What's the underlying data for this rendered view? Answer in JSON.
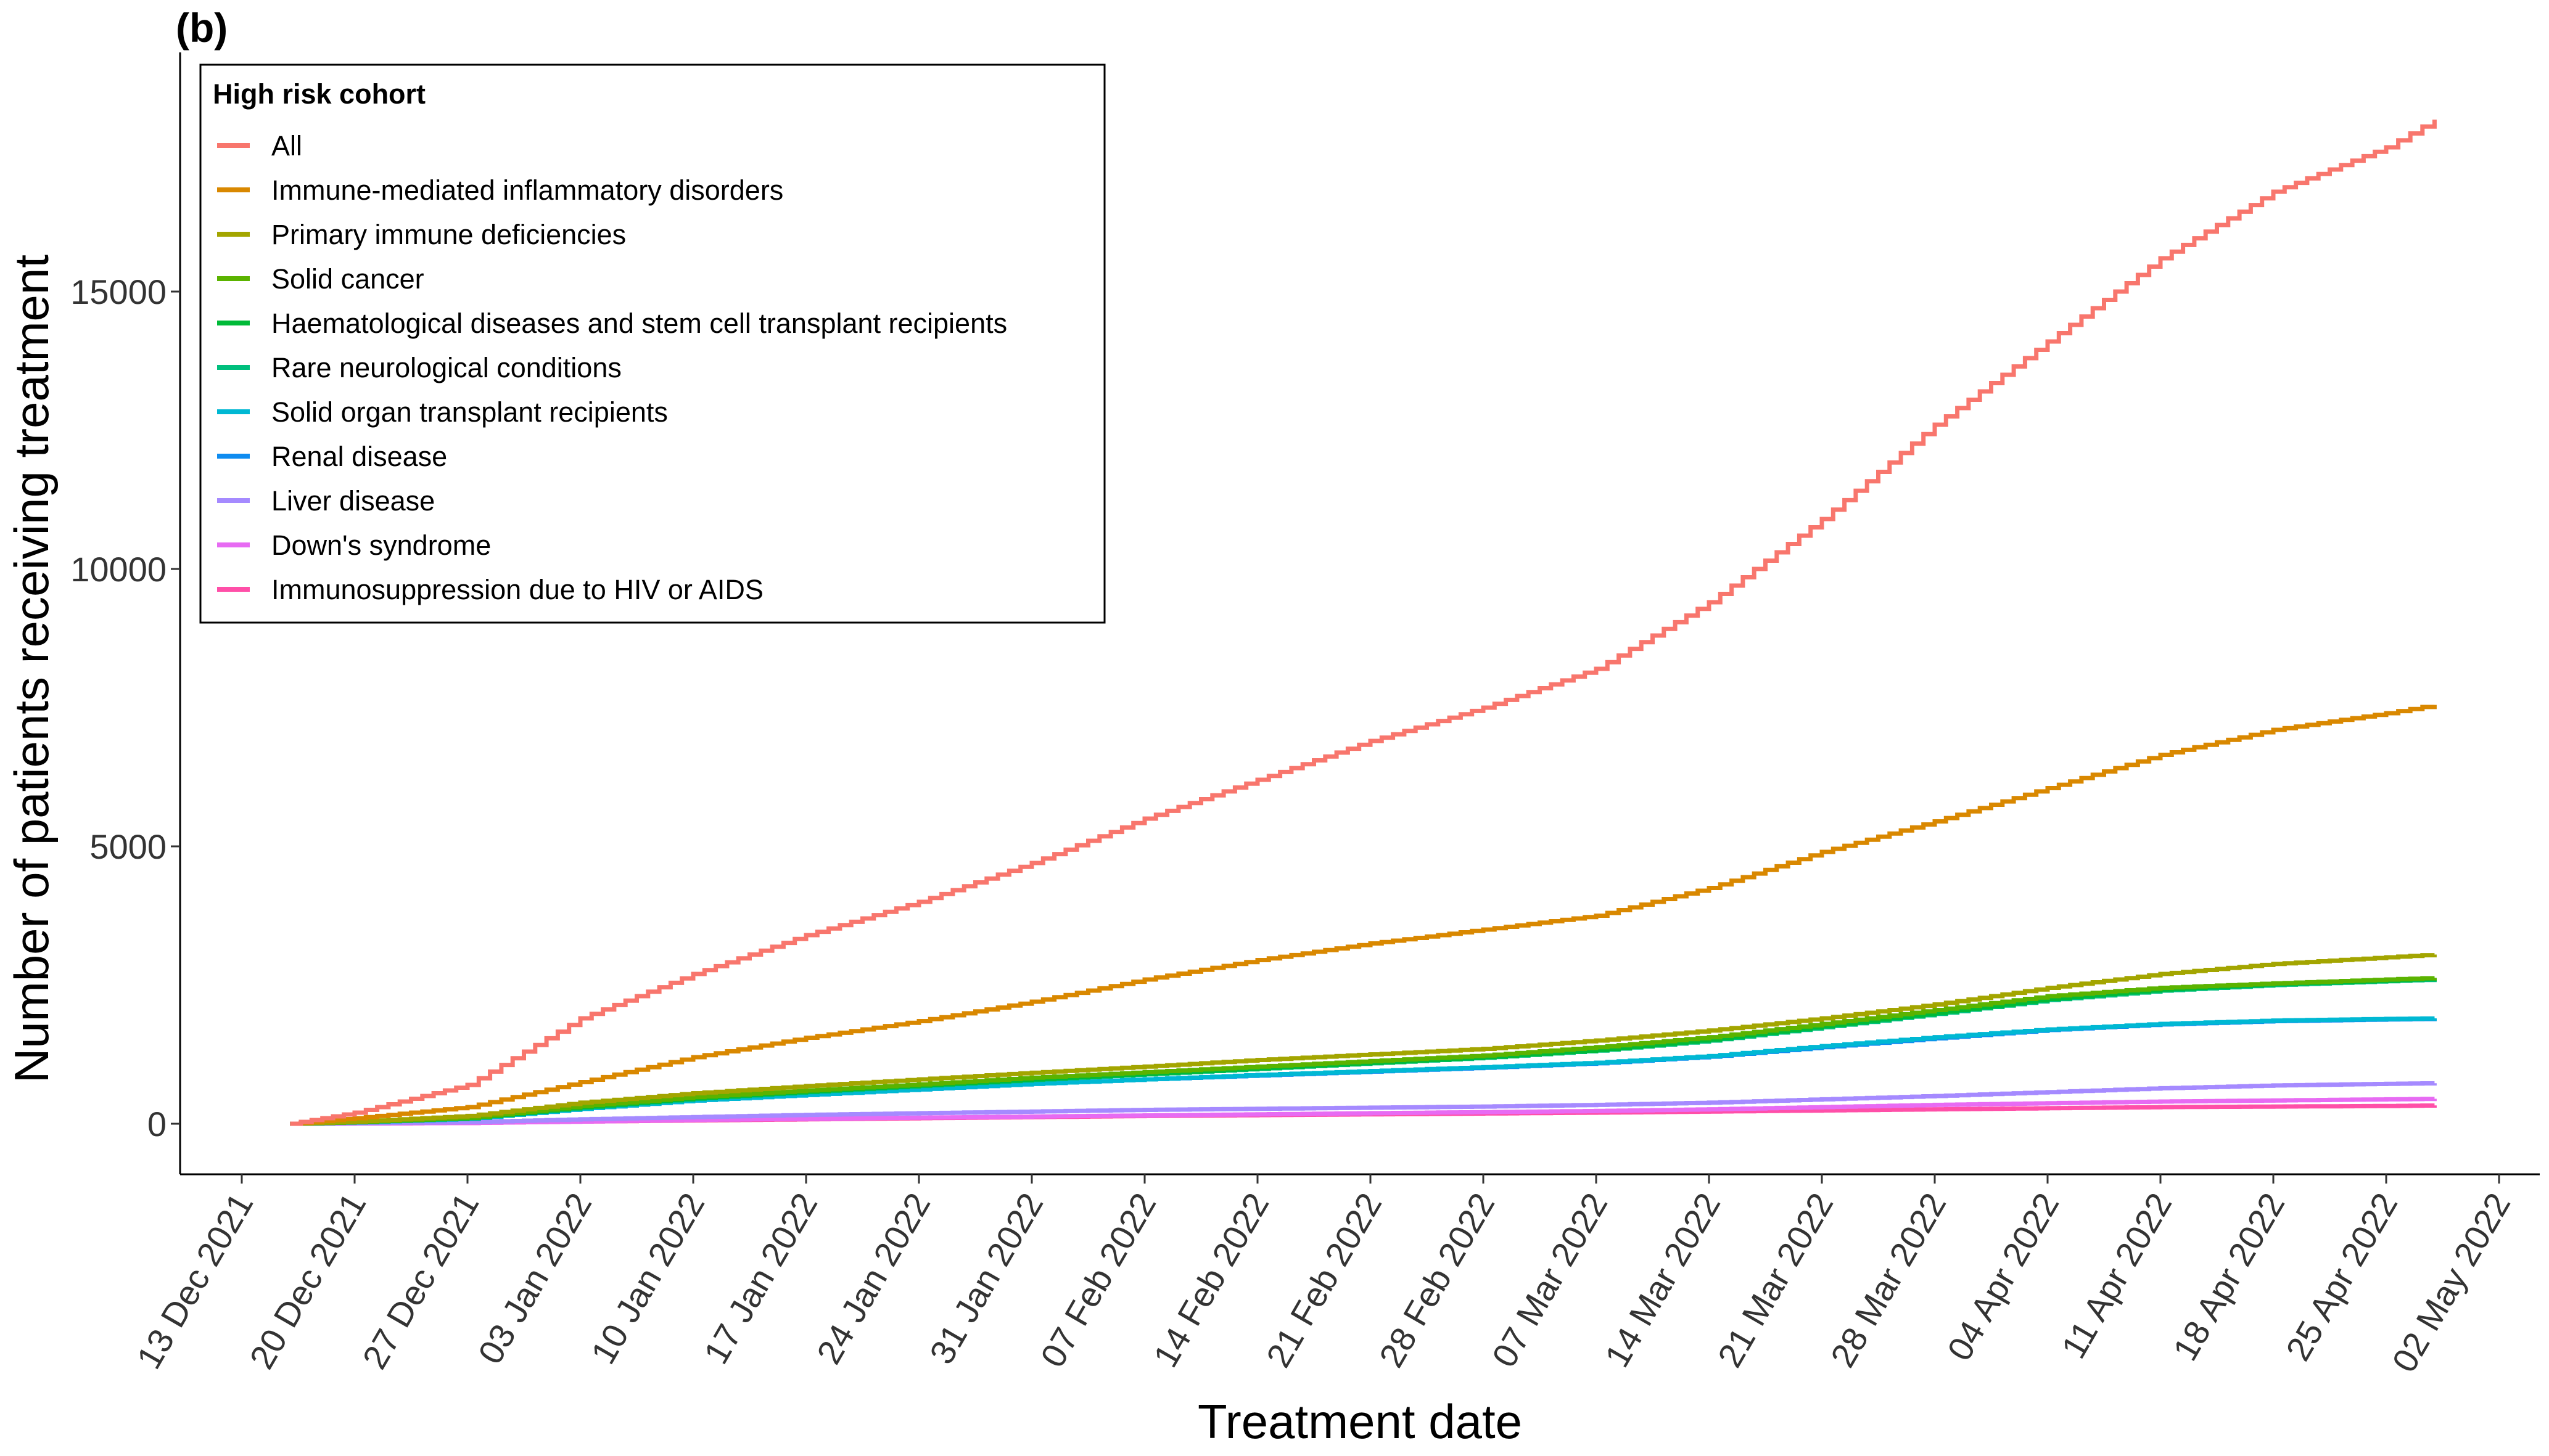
{
  "panel_label": "(b)",
  "chart_data": {
    "type": "line",
    "step": true,
    "xlabel": "Treatment date",
    "ylabel": "Number of patients receiving treatment",
    "xlim": [
      "2021-12-13",
      "2022-05-02"
    ],
    "ylim": [
      0,
      18500
    ],
    "x_ticks": [
      "13 Dec 2021",
      "20 Dec 2021",
      "27 Dec 2021",
      "03 Jan 2022",
      "10 Jan 2022",
      "17 Jan 2022",
      "24 Jan 2022",
      "31 Jan 2022",
      "07 Feb 2022",
      "14 Feb 2022",
      "21 Feb 2022",
      "28 Feb 2022",
      "07 Mar 2022",
      "14 Mar 2022",
      "21 Mar 2022",
      "28 Mar 2022",
      "04 Apr 2022",
      "11 Apr 2022",
      "18 Apr 2022",
      "25 Apr 2022",
      "02 May 2022"
    ],
    "y_ticks": [
      0,
      5000,
      10000,
      15000
    ],
    "grid": false,
    "legend": {
      "title": "High risk cohort",
      "position": "top-left"
    },
    "x_dates": [
      "2021-12-16",
      "2021-12-20",
      "2021-12-27",
      "2022-01-03",
      "2022-01-10",
      "2022-01-17",
      "2022-01-24",
      "2022-01-31",
      "2022-02-07",
      "2022-02-14",
      "2022-02-21",
      "2022-02-28",
      "2022-03-07",
      "2022-03-14",
      "2022-03-21",
      "2022-03-28",
      "2022-04-04",
      "2022-04-11",
      "2022-04-18",
      "2022-04-25",
      "2022-04-28"
    ],
    "series": [
      {
        "name": "All",
        "color": "#F8766D",
        "values": [
          0,
          200,
          700,
          1900,
          2700,
          3400,
          4000,
          4700,
          5500,
          6200,
          6900,
          7500,
          8200,
          9400,
          10900,
          12600,
          14100,
          15600,
          16800,
          17600,
          18100
        ]
      },
      {
        "name": "Immune-mediated inflammatory disorders",
        "color": "#D98800",
        "values": [
          0,
          100,
          300,
          750,
          1200,
          1550,
          1850,
          2200,
          2600,
          2950,
          3250,
          3500,
          3750,
          4250,
          4900,
          5450,
          6050,
          6650,
          7100,
          7400,
          7550
        ]
      },
      {
        "name": "Primary immune deficiencies",
        "color": "#A3A500",
        "values": [
          0,
          40,
          140,
          380,
          550,
          680,
          800,
          920,
          1030,
          1150,
          1250,
          1350,
          1500,
          1680,
          1900,
          2150,
          2450,
          2700,
          2880,
          3000,
          3050
        ]
      },
      {
        "name": "Solid cancer",
        "color": "#5BB300",
        "values": [
          0,
          30,
          110,
          320,
          480,
          600,
          710,
          830,
          930,
          1030,
          1130,
          1230,
          1380,
          1560,
          1800,
          2050,
          2300,
          2450,
          2530,
          2600,
          2630
        ]
      },
      {
        "name": "Haematological diseases and stem cell transplant recipients",
        "color": "#00BA38",
        "values": [
          0,
          30,
          100,
          300,
          460,
          580,
          690,
          800,
          900,
          1000,
          1100,
          1200,
          1330,
          1520,
          1760,
          2000,
          2250,
          2420,
          2520,
          2580,
          2620
        ]
      },
      {
        "name": "Rare neurological conditions",
        "color": "#00BF7D",
        "values": [
          0,
          30,
          100,
          290,
          450,
          570,
          680,
          790,
          890,
          990,
          1090,
          1190,
          1320,
          1500,
          1740,
          1980,
          2230,
          2400,
          2500,
          2570,
          2600
        ]
      },
      {
        "name": "Solid organ transplant recipients",
        "color": "#00B8D3",
        "values": [
          0,
          25,
          90,
          270,
          420,
          520,
          620,
          720,
          800,
          880,
          950,
          1020,
          1100,
          1220,
          1400,
          1560,
          1700,
          1800,
          1860,
          1890,
          1900
        ]
      },
      {
        "name": "Renal disease",
        "color": "#0F8CF0",
        "values": [
          0,
          25,
          90,
          270,
          420,
          520,
          620,
          720,
          800,
          870,
          940,
          1010,
          1090,
          1210,
          1380,
          1540,
          1690,
          1790,
          1850,
          1880,
          1890
        ]
      },
      {
        "name": "Liver disease",
        "color": "#A58AFF",
        "values": [
          0,
          10,
          30,
          80,
          120,
          160,
          190,
          220,
          250,
          270,
          290,
          310,
          340,
          380,
          440,
          500,
          570,
          640,
          690,
          720,
          730
        ]
      },
      {
        "name": "Down's syndrome",
        "color": "#E76BF3",
        "values": [
          0,
          5,
          15,
          40,
          70,
          90,
          110,
          130,
          150,
          170,
          190,
          210,
          230,
          260,
          300,
          340,
          370,
          400,
          420,
          440,
          450
        ]
      },
      {
        "name": "Immunosuppression due to HIV or AIDS",
        "color": "#FF4FA8",
        "values": [
          0,
          5,
          15,
          40,
          60,
          80,
          100,
          120,
          140,
          155,
          170,
          185,
          200,
          220,
          240,
          260,
          280,
          300,
          310,
          320,
          330
        ]
      }
    ]
  }
}
